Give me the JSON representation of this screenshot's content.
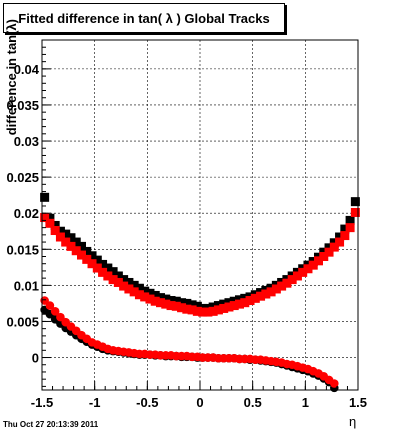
{
  "title": "Fitted difference in tan( λ )  Global Tracks",
  "timestamp": "Thu Oct 27 20:13:39 2011",
  "chart_data": {
    "type": "scatter",
    "title": "Fitted difference in tan( λ )  Global Tracks",
    "xlabel": "η",
    "ylabel": "difference in tan(λ)",
    "xlim": [
      -1.5,
      1.5
    ],
    "ylim": [
      -0.0045,
      0.044
    ],
    "grid": true,
    "xticks": [
      -1.5,
      -1,
      -0.5,
      0,
      0.5,
      1,
      1.5
    ],
    "xtick_labels": [
      "-1.5",
      "-1",
      "-0.5",
      "0",
      "0.5",
      "1",
      "1.5"
    ],
    "yticks": [
      0,
      0.005,
      0.01,
      0.015,
      0.02,
      0.025,
      0.03,
      0.035,
      0.04
    ],
    "ytick_labels": [
      "0",
      "0.005",
      "0.01",
      "0.015",
      "0.02",
      "0.025",
      "0.03",
      "0.035",
      "0.04"
    ],
    "series": [
      {
        "name": "",
        "marker": "square",
        "color": "#000000",
        "x": [
          -1.475,
          -1.425,
          -1.375,
          -1.325,
          -1.275,
          -1.225,
          -1.175,
          -1.125,
          -1.075,
          -1.025,
          -0.975,
          -0.925,
          -0.875,
          -0.825,
          -0.775,
          -0.725,
          -0.675,
          -0.625,
          -0.575,
          -0.525,
          -0.475,
          -0.425,
          -0.375,
          -0.325,
          -0.275,
          -0.225,
          -0.175,
          -0.125,
          -0.075,
          -0.025,
          0.025,
          0.075,
          0.125,
          0.175,
          0.225,
          0.275,
          0.325,
          0.375,
          0.425,
          0.475,
          0.525,
          0.575,
          0.625,
          0.675,
          0.725,
          0.775,
          0.825,
          0.875,
          0.925,
          0.975,
          1.025,
          1.075,
          1.125,
          1.175,
          1.225,
          1.275,
          1.325,
          1.375,
          1.425,
          1.475
        ],
        "y": [
          0.0222,
          0.0193,
          0.0183,
          0.0175,
          0.0171,
          0.0166,
          0.016,
          0.0154,
          0.0147,
          0.0141,
          0.0135,
          0.0129,
          0.0124,
          0.0119,
          0.0113,
          0.0108,
          0.0104,
          0.01,
          0.0096,
          0.0092,
          0.0089,
          0.0086,
          0.0083,
          0.0081,
          0.0079,
          0.0078,
          0.0076,
          0.0075,
          0.0073,
          0.0071,
          0.0068,
          0.0068,
          0.007,
          0.0072,
          0.0074,
          0.0076,
          0.0078,
          0.008,
          0.0082,
          0.0084,
          0.0087,
          0.009,
          0.0093,
          0.0096,
          0.01,
          0.0104,
          0.0108,
          0.0113,
          0.0118,
          0.0123,
          0.0128,
          0.0133,
          0.0139,
          0.0146,
          0.0152,
          0.0159,
          0.0167,
          0.0178,
          0.019,
          0.0216
        ]
      },
      {
        "name": "",
        "marker": "square",
        "color": "#ff0000",
        "x": [
          -1.475,
          -1.425,
          -1.375,
          -1.325,
          -1.275,
          -1.225,
          -1.175,
          -1.125,
          -1.075,
          -1.025,
          -0.975,
          -0.925,
          -0.875,
          -0.825,
          -0.775,
          -0.725,
          -0.675,
          -0.625,
          -0.575,
          -0.525,
          -0.475,
          -0.425,
          -0.375,
          -0.325,
          -0.275,
          -0.225,
          -0.175,
          -0.125,
          -0.075,
          -0.025,
          0.025,
          0.075,
          0.125,
          0.175,
          0.225,
          0.275,
          0.325,
          0.375,
          0.425,
          0.475,
          0.525,
          0.575,
          0.625,
          0.675,
          0.725,
          0.775,
          0.825,
          0.875,
          0.925,
          0.975,
          1.025,
          1.075,
          1.125,
          1.175,
          1.225,
          1.275,
          1.325,
          1.375,
          1.425,
          1.475
        ],
        "y": [
          0.0194,
          0.0186,
          0.0176,
          0.0167,
          0.016,
          0.0154,
          0.0148,
          0.0142,
          0.0136,
          0.013,
          0.0124,
          0.0118,
          0.0113,
          0.0108,
          0.0104,
          0.0099,
          0.0095,
          0.0091,
          0.0087,
          0.0084,
          0.0081,
          0.0078,
          0.0076,
          0.0074,
          0.0072,
          0.0071,
          0.0069,
          0.0067,
          0.0066,
          0.0064,
          0.0063,
          0.0063,
          0.0064,
          0.0066,
          0.0068,
          0.007,
          0.0072,
          0.0074,
          0.0076,
          0.0079,
          0.0082,
          0.0085,
          0.0088,
          0.0091,
          0.0095,
          0.0099,
          0.0103,
          0.0108,
          0.0113,
          0.0118,
          0.0123,
          0.0128,
          0.0134,
          0.014,
          0.0146,
          0.0153,
          0.016,
          0.0169,
          0.018,
          0.0201
        ]
      },
      {
        "name": "",
        "marker": "circle",
        "color": "#000000",
        "x": [
          -1.475,
          -1.425,
          -1.375,
          -1.325,
          -1.275,
          -1.225,
          -1.175,
          -1.125,
          -1.075,
          -1.025,
          -0.975,
          -0.925,
          -0.875,
          -0.825,
          -0.775,
          -0.725,
          -0.675,
          -0.625,
          -0.575,
          -0.525,
          -0.475,
          -0.425,
          -0.375,
          -0.325,
          -0.275,
          -0.225,
          -0.175,
          -0.125,
          -0.075,
          -0.025,
          0.025,
          0.075,
          0.125,
          0.175,
          0.225,
          0.275,
          0.325,
          0.375,
          0.425,
          0.475,
          0.525,
          0.575,
          0.625,
          0.675,
          0.725,
          0.775,
          0.825,
          0.875,
          0.925,
          0.975,
          1.025,
          1.075,
          1.125,
          1.175,
          1.225,
          1.275
        ],
        "y": [
          0.0066,
          0.006,
          0.0053,
          0.0047,
          0.0041,
          0.0036,
          0.0031,
          0.0026,
          0.0022,
          0.0018,
          0.0015,
          0.0012,
          0.001,
          0.0009,
          0.0008,
          0.0007,
          0.0006,
          0.0005,
          0.0004,
          0.0004,
          0.0004,
          0.0003,
          0.0003,
          0.0002,
          0.0002,
          0.0002,
          0.0001,
          0.0001,
          0.0001,
          0.0,
          0.0,
          0.0,
          0.0,
          -0.0001,
          -0.0001,
          -0.0001,
          -0.0001,
          -0.0002,
          -0.0002,
          -0.0003,
          -0.0003,
          -0.0004,
          -0.0005,
          -0.0006,
          -0.0007,
          -0.0009,
          -0.0011,
          -0.0013,
          -0.0015,
          -0.0017,
          -0.0019,
          -0.0022,
          -0.0025,
          -0.0029,
          -0.0034,
          -0.0042
        ]
      },
      {
        "name": "",
        "marker": "circle",
        "color": "#ff0000",
        "x": [
          -1.475,
          -1.425,
          -1.375,
          -1.325,
          -1.275,
          -1.225,
          -1.175,
          -1.125,
          -1.075,
          -1.025,
          -0.975,
          -0.925,
          -0.875,
          -0.825,
          -0.775,
          -0.725,
          -0.675,
          -0.625,
          -0.575,
          -0.525,
          -0.475,
          -0.425,
          -0.375,
          -0.325,
          -0.275,
          -0.225,
          -0.175,
          -0.125,
          -0.075,
          -0.025,
          0.025,
          0.075,
          0.125,
          0.175,
          0.225,
          0.275,
          0.325,
          0.375,
          0.425,
          0.475,
          0.525,
          0.575,
          0.625,
          0.675,
          0.725,
          0.775,
          0.825,
          0.875,
          0.925,
          0.975,
          1.025,
          1.075,
          1.125,
          1.175,
          1.225,
          1.275
        ],
        "y": [
          0.0079,
          0.0072,
          0.0064,
          0.0056,
          0.0049,
          0.0043,
          0.0037,
          0.0031,
          0.0026,
          0.0021,
          0.0018,
          0.0015,
          0.0012,
          0.001,
          0.0009,
          0.0008,
          0.0007,
          0.0006,
          0.0005,
          0.0005,
          0.0004,
          0.0004,
          0.0003,
          0.0003,
          0.0003,
          0.0002,
          0.0002,
          0.0002,
          0.0001,
          0.0001,
          0.0,
          0.0,
          0.0,
          -0.0001,
          -0.0001,
          -0.0001,
          -0.0001,
          -0.0002,
          -0.0002,
          -0.0002,
          -0.0003,
          -0.0003,
          -0.0004,
          -0.0005,
          -0.0006,
          -0.0007,
          -0.0009,
          -0.001,
          -0.0012,
          -0.0014,
          -0.0016,
          -0.0019,
          -0.0022,
          -0.0026,
          -0.0031,
          -0.0036
        ]
      }
    ]
  }
}
